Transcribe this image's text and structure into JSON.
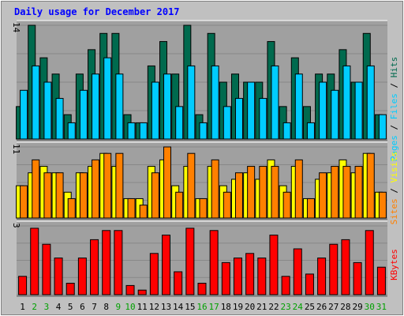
{
  "chart_data": {
    "type": "bar",
    "title": "Daily usage for December 2017",
    "days": [
      "1",
      "2",
      "3",
      "4",
      "5",
      "6",
      "7",
      "8",
      "9",
      "10",
      "11",
      "12",
      "13",
      "14",
      "15",
      "16",
      "17",
      "18",
      "19",
      "20",
      "21",
      "22",
      "23",
      "24",
      "25",
      "26",
      "27",
      "28",
      "29",
      "30",
      "31"
    ],
    "weekend_days": [
      "2",
      "3",
      "9",
      "10",
      "16",
      "17",
      "23",
      "24",
      "30",
      "31"
    ],
    "panels": [
      {
        "id": "hits",
        "ymax_label": "14",
        "ymax": 14,
        "series": [
          {
            "name": "Hits",
            "color": "#006a4e",
            "values": [
              4,
              14,
              10,
              8,
              3,
              8,
              11,
              13,
              13,
              3,
              2,
              9,
              12,
              8,
              14,
              3,
              13,
              7,
              8,
              7,
              7,
              12,
              4,
              10,
              4,
              8,
              8,
              11,
              7,
              13,
              3
            ]
          },
          {
            "name": "Files",
            "color": "#00ccff",
            "values": [
              6,
              9,
              7,
              5,
              2,
              6,
              8,
              10,
              8,
              2,
              2,
              7,
              8,
              4,
              9,
              2,
              9,
              4,
              5,
              7,
              5,
              9,
              2,
              8,
              2,
              7,
              6,
              9,
              7,
              9,
              3
            ]
          },
          {
            "name": "Pages",
            "color": "#00ccff",
            "values": []
          }
        ],
        "legend": [
          "Pages",
          "Files",
          "Hits"
        ]
      },
      {
        "id": "visits",
        "ymax_label": "11",
        "ymax": 11,
        "series": [
          {
            "name": "Visits",
            "color": "#ffff00",
            "values": [
              5,
              7,
              8,
              7,
              4,
              7,
              8,
              10,
              8,
              3,
              3,
              8,
              9,
              5,
              8,
              3,
              8,
              5,
              6,
              7,
              6,
              9,
              5,
              8,
              3,
              6,
              7,
              9,
              7,
              10,
              4
            ]
          },
          {
            "name": "Sites",
            "color": "#ff8000",
            "values": [
              5,
              9,
              7,
              7,
              3,
              7,
              9,
              10,
              10,
              3,
              2,
              7,
              11,
              4,
              10,
              3,
              9,
              4,
              7,
              8,
              8,
              8,
              4,
              9,
              3,
              7,
              8,
              8,
              8,
              10,
              4
            ]
          }
        ],
        "legend": [
          "Sites",
          "Visits"
        ]
      },
      {
        "id": "kbytes",
        "ymax_label": "3",
        "ymax": 3,
        "series": [
          {
            "name": "KBytes",
            "color": "#ff0000",
            "values": [
              0.8,
              2.9,
              2.2,
              1.6,
              0.5,
              1.6,
              2.4,
              2.8,
              2.8,
              0.4,
              0.2,
              1.8,
              2.6,
              1.0,
              2.9,
              0.5,
              2.8,
              1.4,
              1.6,
              1.8,
              1.6,
              2.6,
              0.8,
              2.0,
              0.9,
              1.6,
              2.2,
              2.4,
              1.4,
              2.8,
              1.2
            ]
          }
        ],
        "legend": [
          "KBytes"
        ]
      }
    ],
    "grid": true
  },
  "colors": {
    "background": "#c0c0c0",
    "plot_background": "#a0a0a0",
    "title": "#0000ff",
    "weekday_label": "#000000",
    "weekend_label": "#00a000",
    "legend_pages": "#00ccff",
    "legend_files": "#00ccff",
    "legend_hits": "#006a4e",
    "legend_sites": "#ff8000",
    "legend_visits": "#ffff00",
    "legend_kbytes": "#ff0000"
  }
}
